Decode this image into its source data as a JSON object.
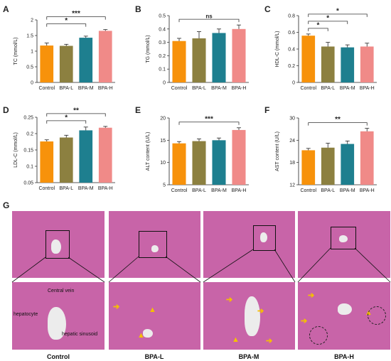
{
  "groups": [
    "Control",
    "BPA-L",
    "BPA-M",
    "BPA-H"
  ],
  "colors": [
    "#f7920b",
    "#8c8040",
    "#1e7f8f",
    "#f08a88"
  ],
  "chart_data": [
    {
      "panel": "A",
      "type": "bar",
      "ylabel": "TC (mmol/L)",
      "ylim": [
        0,
        2.0
      ],
      "yticks": [
        0,
        0.5,
        1.0,
        1.5,
        2.0
      ],
      "categories": [
        "Control",
        "BPA-L",
        "BPA-M",
        "BPA-H"
      ],
      "values": [
        1.18,
        1.17,
        1.43,
        1.65
      ],
      "errors": [
        0.08,
        0.05,
        0.05,
        0.04
      ],
      "significance": [
        {
          "from": 0,
          "to": 2,
          "label": "*"
        },
        {
          "from": 0,
          "to": 3,
          "label": "***"
        }
      ]
    },
    {
      "panel": "B",
      "type": "bar",
      "ylabel": "TG (mmol/L)",
      "ylim": [
        0,
        0.5
      ],
      "yticks": [
        0,
        0.1,
        0.2,
        0.3,
        0.4,
        0.5
      ],
      "categories": [
        "Control",
        "BPA-L",
        "BPA-M",
        "BPA-H"
      ],
      "values": [
        0.31,
        0.33,
        0.37,
        0.4
      ],
      "errors": [
        0.02,
        0.05,
        0.03,
        0.03
      ],
      "significance": [
        {
          "from": 0,
          "to": 3,
          "label": "ns"
        }
      ]
    },
    {
      "panel": "C",
      "type": "bar",
      "ylabel": "HDL-C (mmol/L)",
      "ylim": [
        0,
        0.8
      ],
      "yticks": [
        0,
        0.2,
        0.4,
        0.6,
        0.8
      ],
      "categories": [
        "Control",
        "BPA-L",
        "BPA-M",
        "BPA-H"
      ],
      "values": [
        0.56,
        0.43,
        0.42,
        0.43
      ],
      "errors": [
        0.02,
        0.05,
        0.03,
        0.04
      ],
      "significance": [
        {
          "from": 0,
          "to": 1,
          "label": "*"
        },
        {
          "from": 0,
          "to": 2,
          "label": "*"
        },
        {
          "from": 0,
          "to": 3,
          "label": "*"
        }
      ]
    },
    {
      "panel": "D",
      "type": "bar",
      "ylabel": "LDL-C (mmol/L)",
      "ylim": [
        0.05,
        0.25
      ],
      "yticks": [
        0.05,
        0.1,
        0.15,
        0.2,
        0.25
      ],
      "categories": [
        "Control",
        "BPA-L",
        "BPA-M",
        "BPA-H"
      ],
      "values": [
        0.176,
        0.188,
        0.21,
        0.218
      ],
      "errors": [
        0.005,
        0.007,
        0.01,
        0.004
      ],
      "significance": [
        {
          "from": 0,
          "to": 2,
          "label": "*"
        },
        {
          "from": 0,
          "to": 3,
          "label": "**"
        }
      ]
    },
    {
      "panel": "E",
      "type": "bar",
      "ylabel": "ALT content (U/L)",
      "ylim": [
        5,
        20
      ],
      "yticks": [
        5,
        10,
        15,
        20
      ],
      "categories": [
        "Control",
        "BPA-L",
        "BPA-M",
        "BPA-H"
      ],
      "values": [
        14.3,
        14.8,
        15.0,
        17.3
      ],
      "errors": [
        0.4,
        0.5,
        0.5,
        0.5
      ],
      "significance": [
        {
          "from": 0,
          "to": 3,
          "label": "***"
        }
      ]
    },
    {
      "panel": "F",
      "type": "bar",
      "ylabel": "AST content (U/L)",
      "ylim": [
        12,
        30
      ],
      "yticks": [
        12,
        18,
        24,
        30
      ],
      "categories": [
        "Control",
        "BPA-L",
        "BPA-M",
        "BPA-H"
      ],
      "values": [
        21.3,
        22.0,
        23.0,
        26.4
      ],
      "errors": [
        0.5,
        1.2,
        0.8,
        0.8
      ],
      "significance": [
        {
          "from": 0,
          "to": 3,
          "label": "**"
        }
      ]
    }
  ],
  "histology": {
    "panel_label": "G",
    "annotations": {
      "central_vein": "Central vein",
      "hepatocyte": "hepatocyte",
      "hepatic_sinusoid": "hepatic sinusoid"
    },
    "captions": [
      "Control",
      "BPA-L",
      "BPA-M",
      "BPA-H"
    ]
  }
}
